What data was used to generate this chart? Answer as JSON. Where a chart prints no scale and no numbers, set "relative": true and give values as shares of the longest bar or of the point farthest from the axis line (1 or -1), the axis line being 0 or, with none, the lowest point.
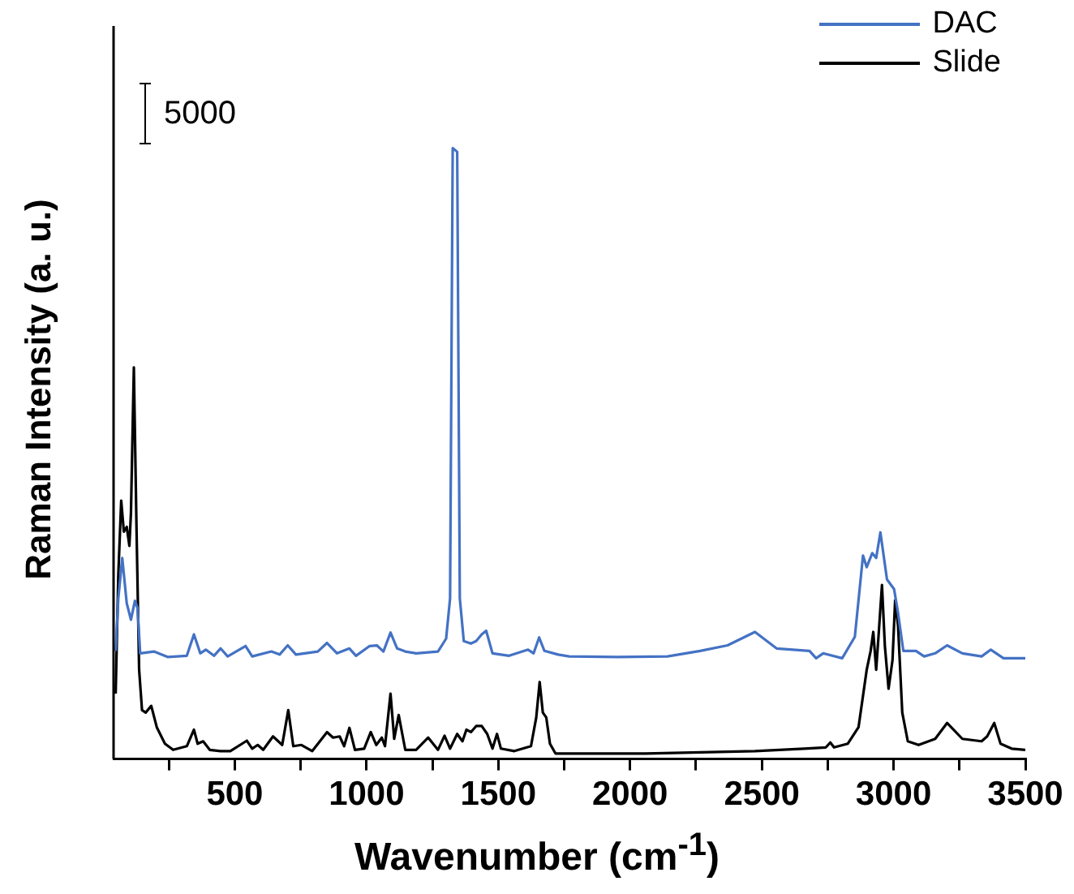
{
  "chart_data": {
    "type": "line",
    "relative": true,
    "xlabel": "Wavenumber (cm$^{-1}$)",
    "ylabel": "Raman Intensity (a. u.)",
    "annotations": [
      "5000"
    ],
    "xlim": [
      40,
      3500
    ],
    "xticks": [
      {
        "value": 250,
        "label": null
      },
      500,
      {
        "value": 750,
        "label": null
      },
      1000,
      {
        "value": 1250,
        "label": null
      },
      1500,
      {
        "value": 1750,
        "label": null
      },
      2000,
      {
        "value": 2250,
        "label": null
      },
      2500,
      {
        "value": 2750,
        "label": null
      },
      3000,
      {
        "value": 3250,
        "label": null
      },
      3500
    ],
    "grid": false,
    "legend": "top right",
    "marker": "none",
    "line_style": "solid",
    "series": [
      {
        "name": "DAC",
        "color": "#4472c4",
        "x": [
          48,
          58,
          73,
          90,
          106,
          121,
          131,
          141,
          193,
          245,
          318,
          345,
          369,
          390,
          421,
          446,
          473,
          541,
          566,
          639,
          670,
          701,
          732,
          815,
          850,
          888,
          935,
          960,
          1012,
          1039,
          1064,
          1091,
          1116,
          1147,
          1188,
          1271,
          1302,
          1317,
          1327,
          1344,
          1354,
          1369,
          1396,
          1416,
          1437,
          1454,
          1478,
          1541,
          1613,
          1634,
          1655,
          1675,
          1727,
          1769,
          1955,
          2142,
          2266,
          2370,
          2474,
          2556,
          2681,
          2706,
          2733,
          2805,
          2853,
          2884,
          2898,
          2919,
          2934,
          2950,
          2975,
          3002,
          3017,
          3037,
          3085,
          3116,
          3158,
          3203,
          3261,
          3334,
          3369,
          3417,
          3500
        ],
        "values": [
          0.177,
          0.263,
          0.329,
          0.255,
          0.228,
          0.259,
          0.247,
          0.173,
          0.176,
          0.167,
          0.169,
          0.204,
          0.173,
          0.179,
          0.169,
          0.181,
          0.168,
          0.185,
          0.168,
          0.176,
          0.171,
          0.186,
          0.171,
          0.176,
          0.19,
          0.173,
          0.181,
          0.169,
          0.185,
          0.186,
          0.176,
          0.207,
          0.181,
          0.176,
          0.173,
          0.176,
          0.197,
          0.263,
          1.0,
          0.994,
          0.263,
          0.193,
          0.189,
          0.193,
          0.204,
          0.21,
          0.173,
          0.169,
          0.179,
          0.173,
          0.199,
          0.177,
          0.171,
          0.168,
          0.167,
          0.168,
          0.177,
          0.186,
          0.208,
          0.181,
          0.177,
          0.165,
          0.173,
          0.165,
          0.2,
          0.333,
          0.314,
          0.337,
          0.329,
          0.371,
          0.294,
          0.278,
          0.239,
          0.177,
          0.177,
          0.168,
          0.173,
          0.186,
          0.173,
          0.168,
          0.179,
          0.165,
          0.165
        ]
      },
      {
        "name": "Slide",
        "color": "#000000",
        "x": [
          48,
          58,
          69,
          79,
          90,
          100,
          106,
          117,
          127,
          137,
          148,
          162,
          183,
          204,
          235,
          266,
          318,
          345,
          359,
          380,
          405,
          446,
          483,
          546,
          566,
          587,
          608,
          645,
          680,
          703,
          722,
          753,
          794,
          850,
          873,
          898,
          915,
          935,
          956,
          991,
          1016,
          1037,
          1058,
          1070,
          1091,
          1105,
          1122,
          1147,
          1188,
          1234,
          1271,
          1296,
          1317,
          1344,
          1364,
          1379,
          1396,
          1416,
          1437,
          1458,
          1478,
          1495,
          1510,
          1561,
          1624,
          1644,
          1657,
          1669,
          1682,
          1696,
          1717,
          2059,
          2474,
          2660,
          2743,
          2760,
          2774,
          2826,
          2867,
          2898,
          2913,
          2923,
          2934,
          2944,
          2956,
          2967,
          2981,
          2996,
          3006,
          3017,
          3033,
          3054,
          3095,
          3158,
          3203,
          3261,
          3334,
          3355,
          3382,
          3406,
          3448,
          3500
        ],
        "values": [
          0.107,
          0.302,
          0.423,
          0.372,
          0.38,
          0.349,
          0.403,
          0.641,
          0.38,
          0.146,
          0.08,
          0.076,
          0.087,
          0.052,
          0.025,
          0.015,
          0.021,
          0.048,
          0.025,
          0.029,
          0.015,
          0.013,
          0.013,
          0.03,
          0.017,
          0.023,
          0.015,
          0.037,
          0.023,
          0.08,
          0.021,
          0.023,
          0.013,
          0.044,
          0.035,
          0.037,
          0.021,
          0.051,
          0.015,
          0.017,
          0.044,
          0.023,
          0.035,
          0.021,
          0.107,
          0.033,
          0.072,
          0.015,
          0.015,
          0.035,
          0.015,
          0.038,
          0.017,
          0.041,
          0.029,
          0.048,
          0.044,
          0.054,
          0.054,
          0.041,
          0.017,
          0.041,
          0.017,
          0.013,
          0.021,
          0.068,
          0.126,
          0.076,
          0.068,
          0.025,
          0.009,
          0.009,
          0.013,
          0.017,
          0.019,
          0.027,
          0.019,
          0.025,
          0.052,
          0.146,
          0.177,
          0.208,
          0.146,
          0.208,
          0.285,
          0.185,
          0.115,
          0.162,
          0.26,
          0.218,
          0.076,
          0.029,
          0.023,
          0.033,
          0.059,
          0.033,
          0.029,
          0.037,
          0.059,
          0.025,
          0.017,
          0.015
        ]
      }
    ]
  }
}
